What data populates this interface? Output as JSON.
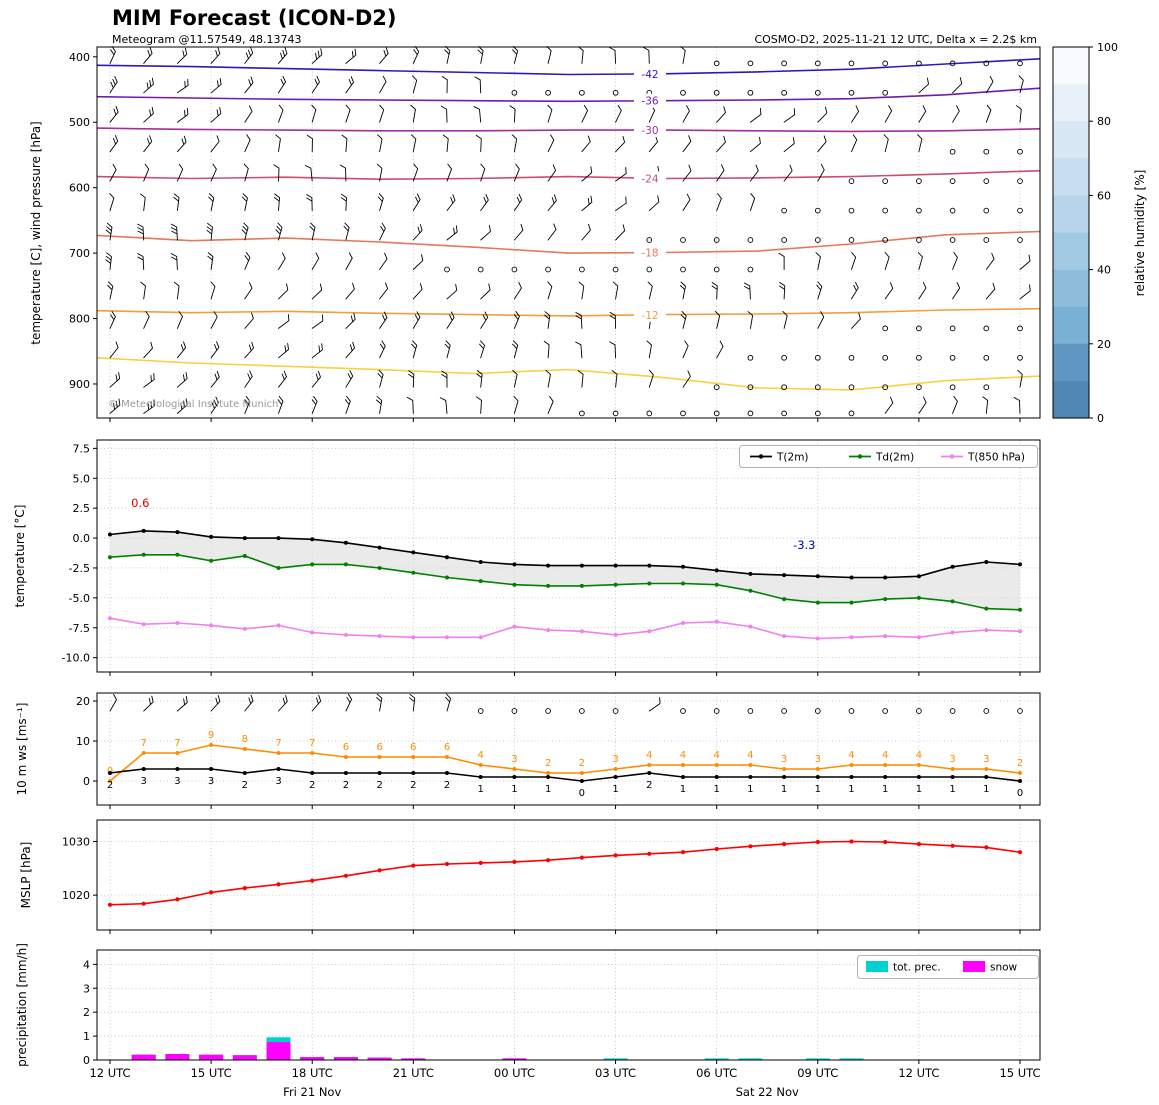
{
  "header": {
    "title": "MIM Forecast (ICON-D2)",
    "subtitle": "Meteogram @11.57549, 48.13743",
    "model_info": "COSMO-D2, 2025-11-21 12 UTC, Delta x = 2.2$ km"
  },
  "copyright": "© Meteorological Institute Munich",
  "time_axis": {
    "tick_hours": [
      0,
      3,
      6,
      9,
      12,
      15,
      18,
      21,
      24,
      27
    ],
    "tick_labels": [
      "12 UTC",
      "15 UTC",
      "18 UTC",
      "21 UTC",
      "00 UTC",
      "03 UTC",
      "06 UTC",
      "09 UTC",
      "12 UTC",
      "15 UTC"
    ],
    "date_labels": [
      {
        "text": "Fri 21 Nov",
        "hour": 6
      },
      {
        "text": "Sat 22 Nov",
        "hour": 19.5
      }
    ]
  },
  "chart_data": [
    {
      "id": "upper_air",
      "type": "line",
      "title": "",
      "ylabel": "temperature [C], wind pressure [hPa]",
      "yticks": [
        "400",
        "500",
        "600",
        "700",
        "800",
        "900"
      ],
      "ylim": [
        952,
        385
      ],
      "contours": [
        {
          "label": "-42",
          "color": "#2a1ab9",
          "pressure_points": [
            413,
            415,
            418,
            421,
            424,
            427,
            426,
            423,
            419,
            411,
            403
          ]
        },
        {
          "label": "-36",
          "color": "#6f1bac",
          "pressure_points": [
            461,
            463,
            465,
            466,
            467,
            468,
            467,
            466,
            464,
            458,
            448
          ]
        },
        {
          "label": "-30",
          "color": "#a62d9c",
          "pressure_points": [
            509,
            511,
            512,
            513,
            513,
            512,
            512,
            513,
            514,
            513,
            510
          ]
        },
        {
          "label": "-24",
          "color": "#c94f6d",
          "pressure_points": [
            583,
            586,
            584,
            587,
            586,
            583,
            586,
            585,
            583,
            579,
            574
          ]
        },
        {
          "label": "-18",
          "color": "#e3795a",
          "pressure_points": [
            673,
            681,
            677,
            683,
            691,
            700,
            699,
            697,
            686,
            672,
            667
          ]
        },
        {
          "label": "-12",
          "color": "#efa03c",
          "pressure_points": [
            788,
            791,
            789,
            792,
            794,
            796,
            794,
            793,
            791,
            787,
            785
          ]
        },
        {
          "label": "",
          "color": "#f8d13f",
          "pressure_points": [
            860,
            868,
            873,
            878,
            884,
            878,
            890,
            906,
            909,
            895,
            888
          ]
        }
      ],
      "barb_levels_hpa": [
        410,
        455,
        500,
        545,
        590,
        635,
        680,
        725,
        770,
        815,
        860,
        905,
        945
      ],
      "colorbar": {
        "label": "relative humidity [%]",
        "ticks": [
          "0",
          "20",
          "40",
          "60",
          "80",
          "100"
        ],
        "colors_top_to_bottom": [
          "#f7fbff",
          "#e8f1fa",
          "#d9e8f5",
          "#c9def0",
          "#b7d4ea",
          "#a2c9e2",
          "#8dbdda",
          "#79b0d3",
          "#6096c2",
          "#4f87b5"
        ]
      }
    },
    {
      "id": "temperature",
      "type": "line",
      "ylabel": "temperature [°C]",
      "yticks": [
        "7.5",
        "5.0",
        "2.5",
        "0.0",
        "-2.5",
        "-5.0",
        "-7.5",
        "-10.0"
      ],
      "ylim": [
        -11.2,
        8.2
      ],
      "series": [
        {
          "name": "T(2m)",
          "color": "#000000",
          "values": [
            0.3,
            0.6,
            0.5,
            0.1,
            0.0,
            0.0,
            -0.1,
            -0.4,
            -0.8,
            -1.2,
            -1.6,
            -2.0,
            -2.2,
            -2.3,
            -2.3,
            -2.3,
            -2.3,
            -2.4,
            -2.7,
            -3.0,
            -3.1,
            -3.2,
            -3.3,
            -3.3,
            -3.2,
            -2.4,
            -2.0,
            -2.2
          ]
        },
        {
          "name": "Td(2m)",
          "color": "#008000",
          "values": [
            -1.6,
            -1.4,
            -1.4,
            -1.9,
            -1.5,
            -2.5,
            -2.2,
            -2.2,
            -2.5,
            -2.9,
            -3.3,
            -3.6,
            -3.9,
            -4.0,
            -4.0,
            -3.9,
            -3.8,
            -3.8,
            -3.9,
            -4.4,
            -5.1,
            -5.4,
            -5.4,
            -5.1,
            -5.0,
            -5.3,
            -5.9,
            -6.0
          ]
        },
        {
          "name": "T(850 hPa)",
          "color": "#ee82ee",
          "values": [
            -6.7,
            -7.2,
            -7.1,
            -7.3,
            -7.6,
            -7.3,
            -7.9,
            -8.1,
            -8.2,
            -8.3,
            -8.3,
            -8.3,
            -7.4,
            -7.7,
            -7.8,
            -8.1,
            -7.8,
            -7.1,
            -7.0,
            -7.4,
            -8.2,
            -8.4,
            -8.3,
            -8.2,
            -8.3,
            -7.9,
            -7.7,
            -7.8
          ]
        }
      ],
      "fill_between_color": "#dedede",
      "annotations": [
        {
          "text": "0.6",
          "color": "#e60000",
          "hour": 0.9,
          "value": 2.6
        },
        {
          "text": "-3.3",
          "color": "#0000cd",
          "hour": 20.6,
          "value": -0.9
        }
      ],
      "legend": [
        "T(2m)",
        "Td(2m)",
        "T(850 hPa)"
      ]
    },
    {
      "id": "wind",
      "type": "line",
      "ylabel": "10 m ws [ms⁻¹]",
      "yticks": [
        "0",
        "10",
        "20"
      ],
      "ylim": [
        -6,
        22
      ],
      "series": [
        {
          "name": "mean",
          "color": "#000000",
          "values": [
            2,
            3,
            3,
            3,
            2,
            3,
            2,
            2,
            2,
            2,
            2,
            1,
            1,
            1,
            0,
            1,
            2,
            1,
            1,
            1,
            1,
            1,
            1,
            1,
            1,
            1,
            1,
            0
          ]
        },
        {
          "name": "gust",
          "color": "#ff8c00",
          "values": [
            0,
            7,
            7,
            9,
            8,
            7,
            7,
            6,
            6,
            6,
            6,
            4,
            3,
            2,
            2,
            3,
            4,
            4,
            4,
            4,
            3,
            3,
            4,
            4,
            4,
            3,
            3,
            2
          ]
        }
      ]
    },
    {
      "id": "mslp",
      "type": "line",
      "ylabel": "MSLP [hPa]",
      "yticks": [
        "1020",
        "1030"
      ],
      "ylim": [
        1013.5,
        1034
      ],
      "series": [
        {
          "name": "MSLP",
          "color": "#ff0000",
          "values": [
            1018.2,
            1018.4,
            1019.2,
            1020.5,
            1021.3,
            1022.0,
            1022.7,
            1023.6,
            1024.6,
            1025.5,
            1025.8,
            1026.0,
            1026.2,
            1026.5,
            1027.0,
            1027.4,
            1027.7,
            1028.0,
            1028.6,
            1029.1,
            1029.5,
            1029.9,
            1030.0,
            1029.9,
            1029.5,
            1029.2,
            1028.9,
            1028.0
          ]
        }
      ]
    },
    {
      "id": "precipitation",
      "type": "bar",
      "ylabel": "precipitation [mm/h]",
      "yticks": [
        "0",
        "1",
        "2",
        "3",
        "4"
      ],
      "ylim": [
        0,
        4.6
      ],
      "series": [
        {
          "name": "tot. prec.",
          "color": "#00d0d0",
          "values": [
            0,
            0.22,
            0.25,
            0.22,
            0.2,
            0.95,
            0.12,
            0.12,
            0.1,
            0.05,
            0,
            0,
            0.03,
            0,
            0,
            0.02,
            0,
            0,
            0.02,
            0.02,
            0,
            0.02,
            0.02,
            0,
            0,
            0,
            0,
            0
          ]
        },
        {
          "name": "snow",
          "color": "#ff00ff",
          "values": [
            0,
            0.22,
            0.25,
            0.22,
            0.2,
            0.75,
            0.12,
            0.12,
            0.1,
            0.05,
            0,
            0,
            0.03,
            0,
            0,
            0,
            0,
            0,
            0,
            0,
            0,
            0,
            0,
            0,
            0,
            0,
            0,
            0
          ]
        }
      ],
      "legend": [
        "tot. prec.",
        "snow"
      ]
    }
  ]
}
